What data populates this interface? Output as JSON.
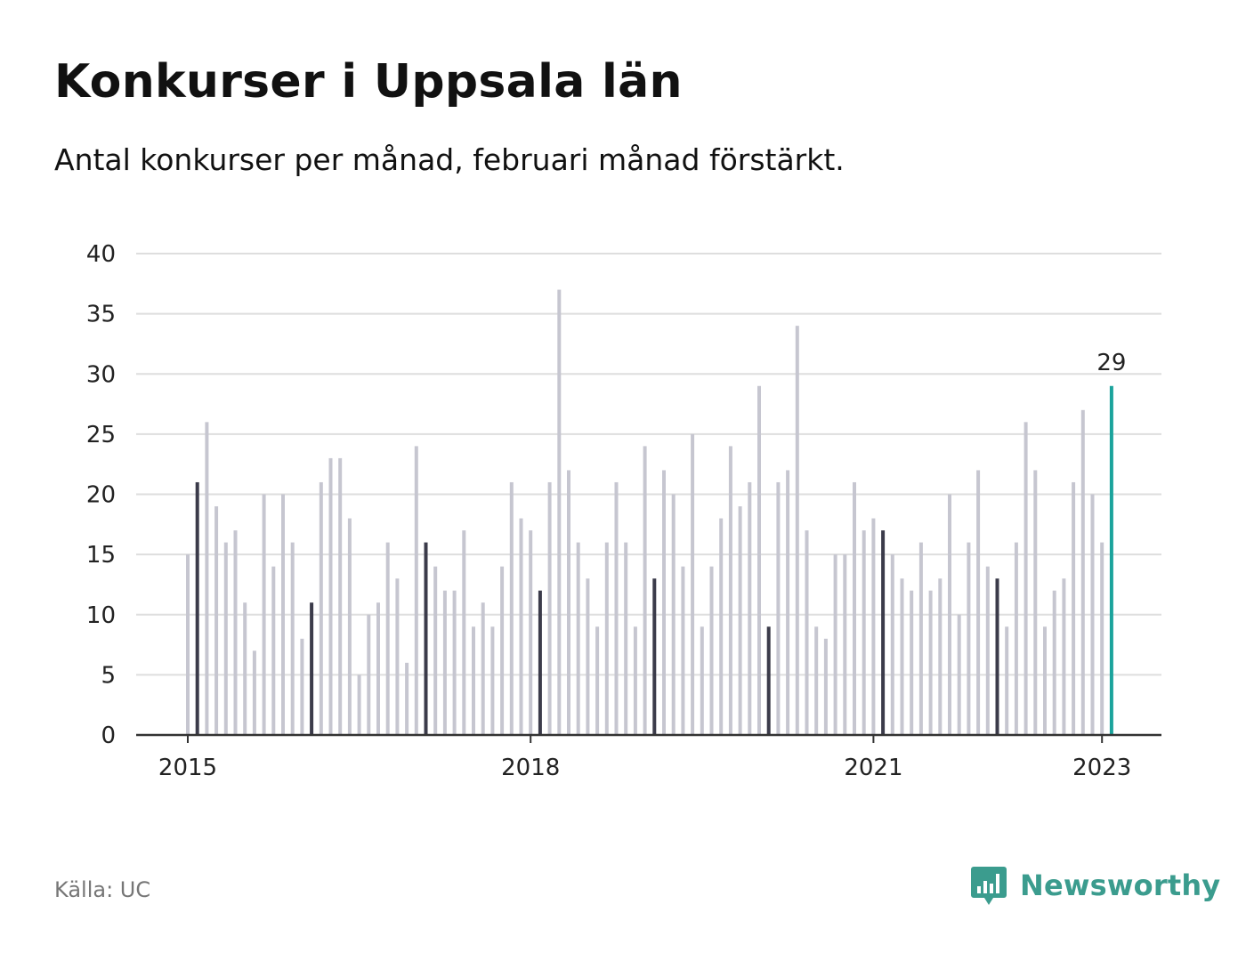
{
  "title": "Konkurser i Uppsala län",
  "subtitle": "Antal konkurser per månad, februari månad förstärkt.",
  "source": "Källa: UC",
  "brand": {
    "name": "Newsworthy",
    "icon": "newsworthy-logo-icon"
  },
  "colors": {
    "bar": "#c6c6d0",
    "february": "#3b3b4a",
    "latest": "#1ba39c",
    "grid": "#dedede",
    "axis": "#333333",
    "brand": "#3b9c8e"
  },
  "chart_data": {
    "type": "bar",
    "title": "Konkurser i Uppsala län",
    "subtitle": "Antal konkurser per månad, februari månad förstärkt.",
    "xlabel": "",
    "ylabel": "",
    "ylim": [
      0,
      40
    ],
    "yticks": [
      0,
      5,
      10,
      15,
      20,
      25,
      30,
      35,
      40
    ],
    "xticks": [
      {
        "label": "2015",
        "month": "2015-01"
      },
      {
        "label": "2018",
        "month": "2018-01"
      },
      {
        "label": "2021",
        "month": "2021-01"
      },
      {
        "label": "2023",
        "month": "2023-01"
      }
    ],
    "grid": true,
    "highlight": "February",
    "annotation": {
      "month": "2023-02",
      "label": "29"
    },
    "start_month": "2015-01",
    "values": [
      15,
      21,
      26,
      19,
      16,
      17,
      11,
      7,
      20,
      14,
      20,
      16,
      8,
      11,
      21,
      23,
      23,
      18,
      5,
      10,
      11,
      16,
      13,
      6,
      24,
      16,
      14,
      12,
      12,
      17,
      9,
      11,
      9,
      14,
      21,
      18,
      17,
      12,
      21,
      37,
      22,
      16,
      13,
      9,
      16,
      21,
      16,
      9,
      24,
      13,
      22,
      20,
      14,
      25,
      9,
      14,
      18,
      24,
      19,
      21,
      29,
      9,
      21,
      22,
      34,
      17,
      9,
      8,
      15,
      15,
      21,
      17,
      18,
      17,
      15,
      13,
      12,
      16,
      12,
      13,
      20,
      10,
      16,
      22,
      14,
      13,
      9,
      16,
      26,
      22,
      9,
      12,
      13,
      21,
      27,
      20,
      16,
      29
    ]
  }
}
